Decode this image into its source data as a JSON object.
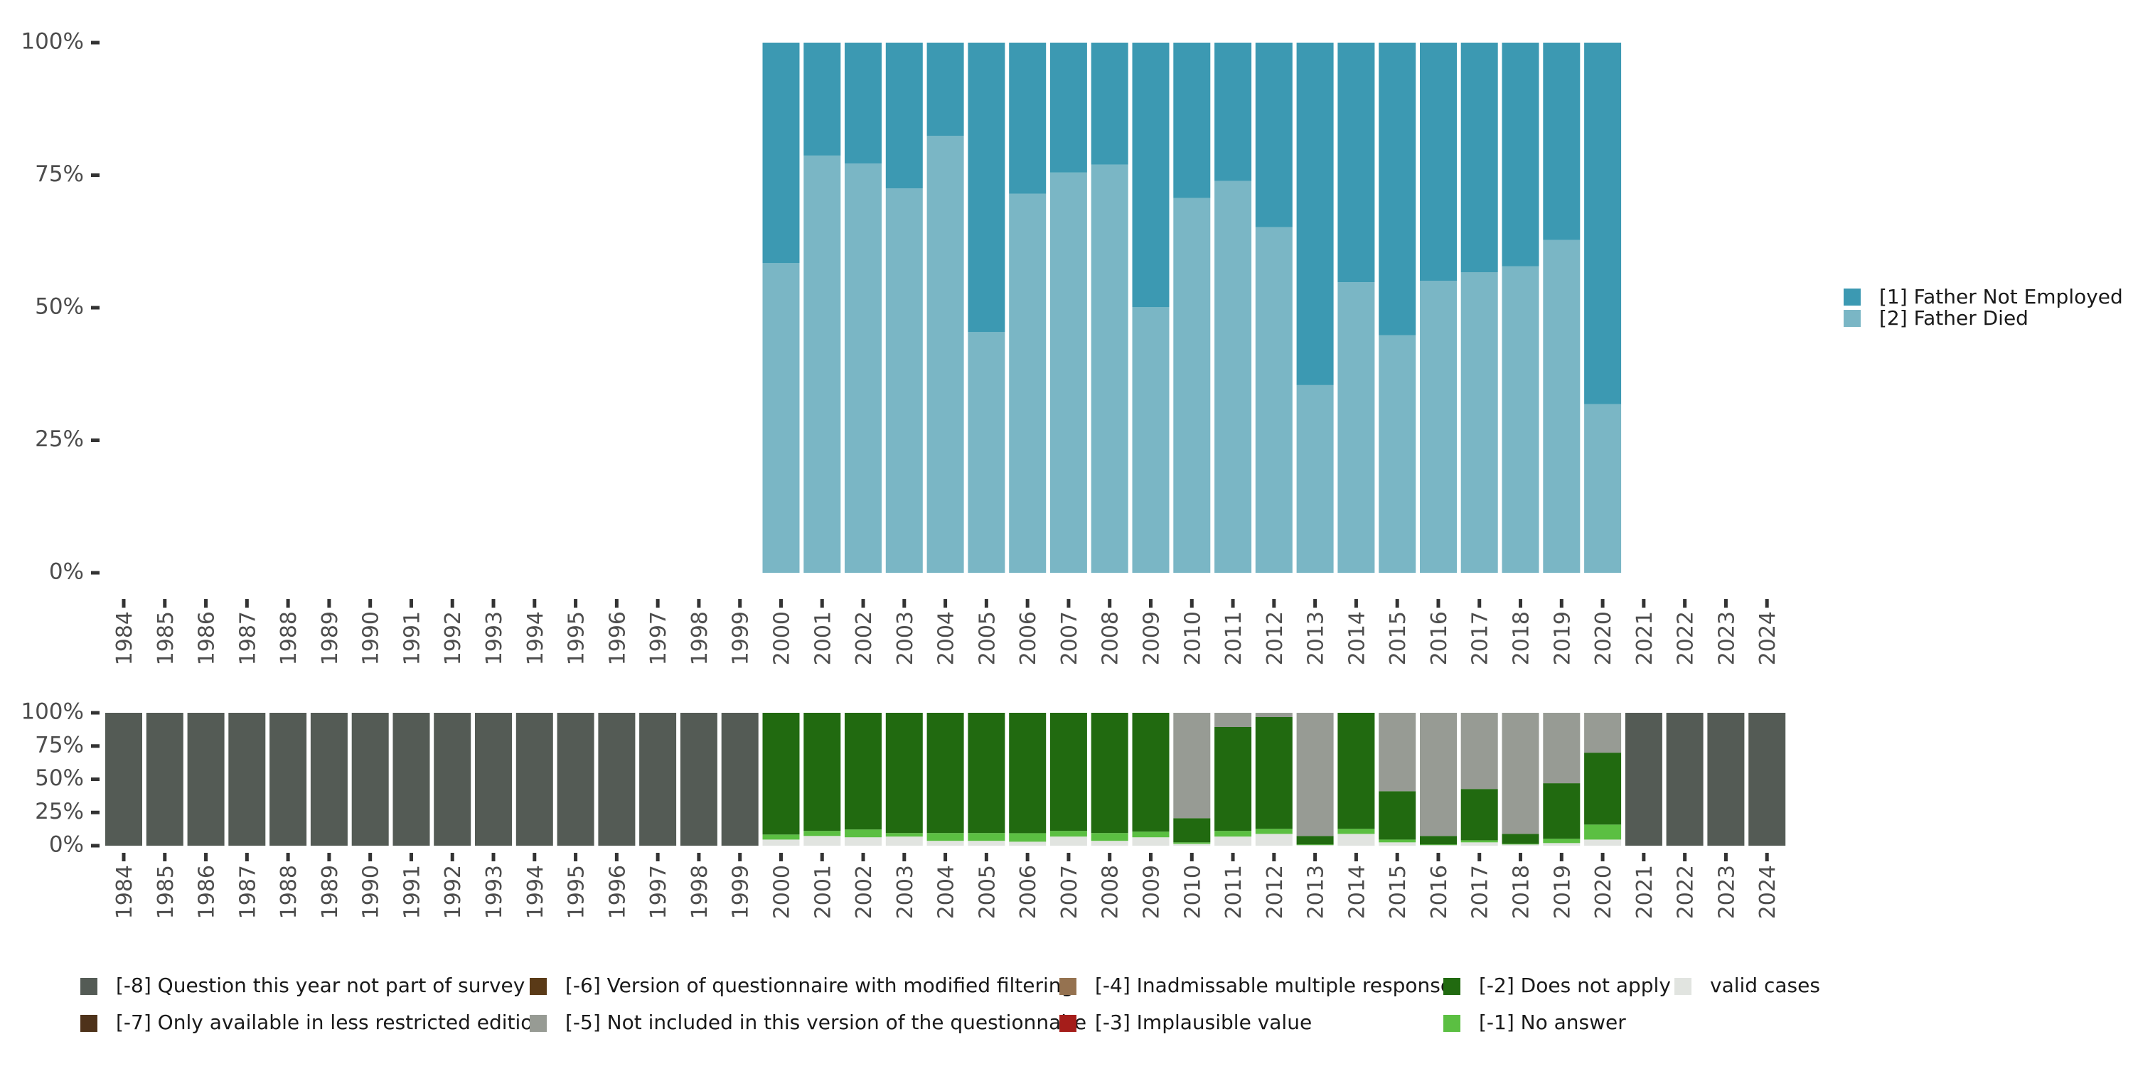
{
  "chart_data": [
    {
      "type": "bar",
      "stacked": true,
      "normalized": true,
      "title": "",
      "xlabel": "",
      "ylabel": "",
      "ylim": [
        0,
        1
      ],
      "yticks": [
        "0%",
        "25%",
        "50%",
        "75%",
        "100%"
      ],
      "categories": [
        "1984",
        "1985",
        "1986",
        "1987",
        "1988",
        "1989",
        "1990",
        "1991",
        "1992",
        "1993",
        "1994",
        "1995",
        "1996",
        "1997",
        "1998",
        "1999",
        "2000",
        "2001",
        "2002",
        "2003",
        "2004",
        "2005",
        "2006",
        "2007",
        "2008",
        "2009",
        "2010",
        "2011",
        "2012",
        "2013",
        "2014",
        "2015",
        "2016",
        "2017",
        "2018",
        "2019",
        "2020",
        "2021",
        "2022",
        "2023",
        "2024"
      ],
      "legend_position": "right",
      "series": [
        {
          "name": "[2] Father Died",
          "color": "#7ab6c5",
          "values": [
            null,
            null,
            null,
            null,
            null,
            null,
            null,
            null,
            null,
            null,
            null,
            null,
            null,
            null,
            null,
            null,
            0.584,
            0.787,
            0.772,
            0.725,
            0.824,
            0.454,
            0.715,
            0.755,
            0.77,
            0.501,
            0.707,
            0.739,
            0.652,
            0.354,
            0.548,
            0.448,
            0.551,
            0.567,
            0.578,
            0.628,
            0.318,
            null,
            null,
            null,
            null
          ]
        },
        {
          "name": "[1] Father Not Employed",
          "color": "#3c99b2",
          "values": [
            null,
            null,
            null,
            null,
            null,
            null,
            null,
            null,
            null,
            null,
            null,
            null,
            null,
            null,
            null,
            null,
            0.416,
            0.213,
            0.228,
            0.275,
            0.176,
            0.546,
            0.285,
            0.245,
            0.23,
            0.499,
            0.293,
            0.261,
            0.348,
            0.646,
            0.452,
            0.552,
            0.449,
            0.433,
            0.422,
            0.372,
            0.682,
            null,
            null,
            null,
            null
          ]
        }
      ],
      "legend": [
        {
          "label": "[1] Father Not Employed",
          "color": "#3c99b2"
        },
        {
          "label": "[2] Father Died",
          "color": "#7ab6c5"
        }
      ]
    },
    {
      "type": "bar",
      "stacked": true,
      "normalized": true,
      "title": "",
      "xlabel": "",
      "ylabel": "",
      "ylim": [
        0,
        1
      ],
      "yticks": [
        "0%",
        "25%",
        "50%",
        "75%",
        "100%"
      ],
      "categories": [
        "1984",
        "1985",
        "1986",
        "1987",
        "1988",
        "1989",
        "1990",
        "1991",
        "1992",
        "1993",
        "1994",
        "1995",
        "1996",
        "1997",
        "1998",
        "1999",
        "2000",
        "2001",
        "2002",
        "2003",
        "2004",
        "2005",
        "2006",
        "2007",
        "2008",
        "2009",
        "2010",
        "2011",
        "2012",
        "2013",
        "2014",
        "2015",
        "2016",
        "2017",
        "2018",
        "2019",
        "2020",
        "2021",
        "2022",
        "2023",
        "2024"
      ],
      "legend_position": "bottom",
      "series": [
        {
          "name": "valid cases",
          "color": "#e1e4e0",
          "values": [
            0,
            0,
            0,
            0,
            0,
            0,
            0,
            0,
            0,
            0,
            0,
            0,
            0,
            0,
            0,
            0,
            0.046,
            0.073,
            0.063,
            0.068,
            0.036,
            0.036,
            0.03,
            0.068,
            0.036,
            0.063,
            0.014,
            0.068,
            0.089,
            0.004,
            0.089,
            0.025,
            0.004,
            0.025,
            0.009,
            0.02,
            0.046,
            0,
            0,
            0,
            0
          ]
        },
        {
          "name": "[-1] No answer",
          "color": "#5bbf42",
          "values": [
            0,
            0,
            0,
            0,
            0,
            0,
            0,
            0,
            0,
            0,
            0,
            0,
            0,
            0,
            0,
            0,
            0.038,
            0.038,
            0.059,
            0.027,
            0.059,
            0.059,
            0.064,
            0.043,
            0.059,
            0.043,
            0.011,
            0.043,
            0.038,
            0.005,
            0.038,
            0.021,
            0.005,
            0.016,
            0.005,
            0.032,
            0.113,
            0,
            0,
            0,
            0
          ]
        },
        {
          "name": "[-2] Does not apply",
          "color": "#216a10",
          "values": [
            0,
            0,
            0,
            0,
            0,
            0,
            0,
            0,
            0,
            0,
            0,
            0,
            0,
            0,
            0,
            0,
            0.916,
            0.889,
            0.878,
            0.905,
            0.905,
            0.905,
            0.906,
            0.889,
            0.905,
            0.894,
            0.182,
            0.782,
            0.841,
            0.064,
            0.873,
            0.364,
            0.064,
            0.386,
            0.075,
            0.418,
            0.541,
            0,
            0,
            0,
            0
          ]
        },
        {
          "name": "[-5] Not included in this version of the questionnaire",
          "color": "#979b94",
          "values": [
            0,
            0,
            0,
            0,
            0,
            0,
            0,
            0,
            0,
            0,
            0,
            0,
            0,
            0,
            0,
            0,
            0,
            0,
            0,
            0,
            0,
            0,
            0,
            0,
            0,
            0,
            0.793,
            0.107,
            0.032,
            0.927,
            0,
            0.59,
            0.927,
            0.573,
            0.911,
            0.53,
            0.3,
            0,
            0,
            0,
            0
          ]
        },
        {
          "name": "[-8] Question this year not part of survey",
          "color": "#545b55",
          "values": [
            1,
            1,
            1,
            1,
            1,
            1,
            1,
            1,
            1,
            1,
            1,
            1,
            1,
            1,
            1,
            1,
            0,
            0,
            0,
            0,
            0,
            0,
            0,
            0,
            0,
            0,
            0,
            0,
            0,
            0,
            0,
            0,
            0,
            0,
            0,
            0,
            0,
            1,
            1,
            1,
            1
          ]
        }
      ],
      "legend": [
        {
          "label": "[-8] Question this year not part of survey",
          "color": "#545b55"
        },
        {
          "label": "[-7] Only available in less restricted edition",
          "color": "#4e321a"
        },
        {
          "label": "[-6] Version of questionnaire with modified filtering",
          "color": "#5a3a17"
        },
        {
          "label": "[-5] Not included in this version of the questionnaire",
          "color": "#979b94"
        },
        {
          "label": "[-4] Inadmissable multiple response",
          "color": "#957250"
        },
        {
          "label": "[-3] Implausible value",
          "color": "#a51d1a"
        },
        {
          "label": "[-2] Does not apply",
          "color": "#216a10"
        },
        {
          "label": "[-1] No answer",
          "color": "#5bbf42"
        },
        {
          "label": "valid cases",
          "color": "#e1e4e0"
        }
      ]
    }
  ]
}
